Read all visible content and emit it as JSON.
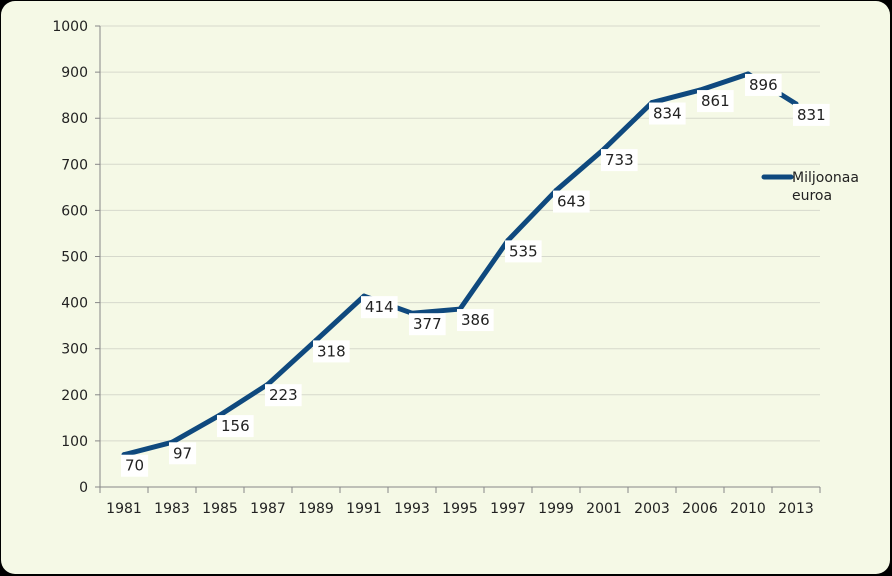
{
  "chart_data": {
    "type": "line",
    "categories": [
      "1981",
      "1983",
      "1985",
      "1987",
      "1989",
      "1991",
      "1993",
      "1995",
      "1997",
      "1999",
      "2001",
      "2003",
      "2006",
      "2010",
      "2013"
    ],
    "series": [
      {
        "name": "Miljoonaa euroa",
        "values": [
          70,
          97,
          156,
          223,
          318,
          414,
          377,
          386,
          535,
          643,
          733,
          834,
          861,
          896,
          831
        ]
      }
    ],
    "data_labels": [
      "70",
      "97",
      "156",
      "223",
      "318",
      "414",
      "377",
      "386",
      "535",
      "643",
      "733",
      "834",
      "861",
      "896",
      "831"
    ],
    "y_ticks": [
      "0",
      "100",
      "200",
      "300",
      "400",
      "500",
      "600",
      "700",
      "800",
      "900",
      "1000"
    ],
    "ylim": [
      0,
      1000
    ],
    "grid": true,
    "legend": {
      "position": "right",
      "label_lines": [
        "Miljoonaa",
        "euroa"
      ]
    },
    "colors": {
      "series": "#0f497e",
      "background": "#f5f9e6",
      "grid": "#d6d9cc",
      "frame": "#000000"
    }
  }
}
